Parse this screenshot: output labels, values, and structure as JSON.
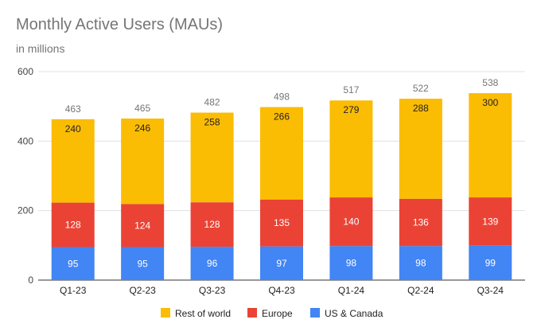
{
  "chart_data": {
    "type": "bar",
    "stacked": true,
    "title": "Monthly Active Users (MAUs)",
    "subtitle": "in millions",
    "xlabel": "",
    "ylabel": "",
    "ylim": [
      0,
      600
    ],
    "yticks": [
      0,
      200,
      400,
      600
    ],
    "grid": true,
    "legend_position": "bottom",
    "categories": [
      "Q1-23",
      "Q2-23",
      "Q3-23",
      "Q4-23",
      "Q1-24",
      "Q2-24",
      "Q3-24"
    ],
    "series": [
      {
        "name": "US & Canada",
        "color": "#4285F4",
        "values": [
          95,
          95,
          96,
          97,
          98,
          98,
          99
        ]
      },
      {
        "name": "Europe",
        "color": "#EA4335",
        "values": [
          128,
          124,
          128,
          135,
          140,
          136,
          139
        ]
      },
      {
        "name": "Rest of world",
        "color": "#FBBC04",
        "values": [
          240,
          246,
          258,
          266,
          279,
          288,
          300
        ]
      }
    ],
    "totals": [
      463,
      465,
      482,
      498,
      517,
      522,
      538
    ],
    "legend_order": [
      "Rest of world",
      "Europe",
      "US & Canada"
    ]
  }
}
